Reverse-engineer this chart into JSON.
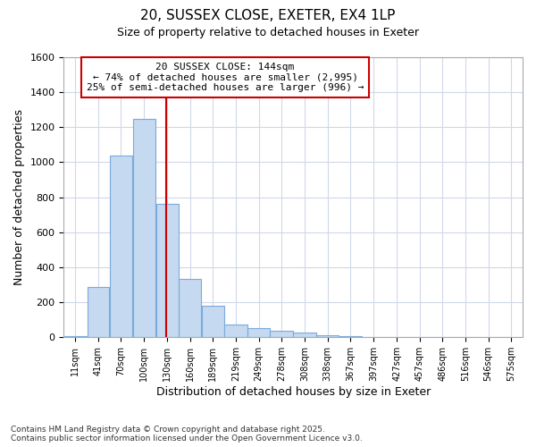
{
  "title_line1": "20, SUSSEX CLOSE, EXETER, EX4 1LP",
  "title_line2": "Size of property relative to detached houses in Exeter",
  "xlabel": "Distribution of detached houses by size in Exeter",
  "ylabel": "Number of detached properties",
  "annotation_title": "20 SUSSEX CLOSE: 144sqm",
  "annotation_line1": "← 74% of detached houses are smaller (2,995)",
  "annotation_line2": "25% of semi-detached houses are larger (996) →",
  "vline_x": 144,
  "bins": [
    11,
    41,
    70,
    100,
    130,
    160,
    189,
    219,
    249,
    278,
    308,
    338,
    367,
    397,
    427,
    457,
    486,
    516,
    546,
    575,
    605
  ],
  "counts": [
    5,
    285,
    1040,
    1250,
    760,
    335,
    180,
    75,
    50,
    35,
    25,
    10,
    5,
    0,
    0,
    0,
    0,
    0,
    0,
    0
  ],
  "bar_color": "#c5d9f0",
  "bar_edge_color": "#7aaadc",
  "vline_color": "#cc0000",
  "annotation_box_edge_color": "#cc0000",
  "annotation_fill": "#ffffff",
  "background_color": "#ffffff",
  "grid_color": "#d0d8e8",
  "ylim": [
    0,
    1600
  ],
  "yticks": [
    0,
    200,
    400,
    600,
    800,
    1000,
    1200,
    1400,
    1600
  ],
  "footnote_line1": "Contains HM Land Registry data © Crown copyright and database right 2025.",
  "footnote_line2": "Contains public sector information licensed under the Open Government Licence v3.0."
}
